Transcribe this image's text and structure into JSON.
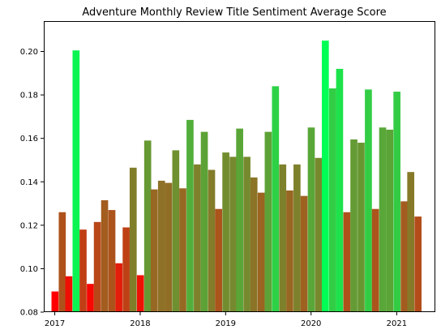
{
  "chart_data": {
    "type": "bar",
    "title": "Adventure Monthly Review Title Sentiment Average Score",
    "xlabel": "",
    "ylabel": "",
    "ylim": [
      0.08,
      0.214
    ],
    "xlim": [
      "2016-11-15",
      "2021-06-15"
    ],
    "grid": false,
    "legend": "none",
    "color_scale": {
      "low": "#ff0000",
      "high": "#00ff55",
      "min_value": 0.0895,
      "max_value": 0.205
    },
    "x_ticks": [
      {
        "date": "2017-01-01",
        "label": "2017"
      },
      {
        "date": "2018-01-01",
        "label": "2018"
      },
      {
        "date": "2019-01-01",
        "label": "2019"
      },
      {
        "date": "2020-01-01",
        "label": "2020"
      },
      {
        "date": "2021-01-01",
        "label": "2021"
      }
    ],
    "y_ticks": [
      {
        "value": 0.08,
        "label": "0.08"
      },
      {
        "value": 0.1,
        "label": "0.10"
      },
      {
        "value": 0.12,
        "label": "0.12"
      },
      {
        "value": 0.14,
        "label": "0.14"
      },
      {
        "value": 0.16,
        "label": "0.16"
      },
      {
        "value": 0.18,
        "label": "0.18"
      },
      {
        "value": 0.2,
        "label": "0.20"
      }
    ],
    "x": [
      "2017-01",
      "2017-02",
      "2017-03",
      "2017-04",
      "2017-05",
      "2017-06",
      "2017-07",
      "2017-08",
      "2017-09",
      "2017-10",
      "2017-11",
      "2017-12",
      "2018-01",
      "2018-02",
      "2018-03",
      "2018-04",
      "2018-05",
      "2018-06",
      "2018-07",
      "2018-08",
      "2018-09",
      "2018-10",
      "2018-11",
      "2018-12",
      "2019-01",
      "2019-02",
      "2019-03",
      "2019-04",
      "2019-05",
      "2019-06",
      "2019-07",
      "2019-08",
      "2019-09",
      "2019-10",
      "2019-11",
      "2019-12",
      "2020-01",
      "2020-02",
      "2020-03",
      "2020-04",
      "2020-05",
      "2020-06",
      "2020-07",
      "2020-08",
      "2020-09",
      "2020-10",
      "2020-11",
      "2020-12",
      "2021-01",
      "2021-02",
      "2021-03",
      "2021-04"
    ],
    "values": [
      0.0895,
      0.126,
      0.0965,
      0.2005,
      0.118,
      0.093,
      0.1215,
      0.1315,
      0.127,
      0.1025,
      0.119,
      0.1465,
      0.097,
      0.159,
      0.1365,
      0.1405,
      0.1395,
      0.1545,
      0.137,
      0.1685,
      0.148,
      0.163,
      0.1455,
      0.1275,
      0.1535,
      0.1515,
      0.1645,
      0.1515,
      0.142,
      0.135,
      0.163,
      0.184,
      0.148,
      0.136,
      0.148,
      0.1335,
      0.165,
      0.151,
      0.205,
      0.183,
      0.192,
      0.126,
      0.1595,
      0.158,
      0.1825,
      0.1275,
      0.165,
      0.164,
      0.1815,
      0.131,
      0.1445,
      0.124
    ]
  }
}
